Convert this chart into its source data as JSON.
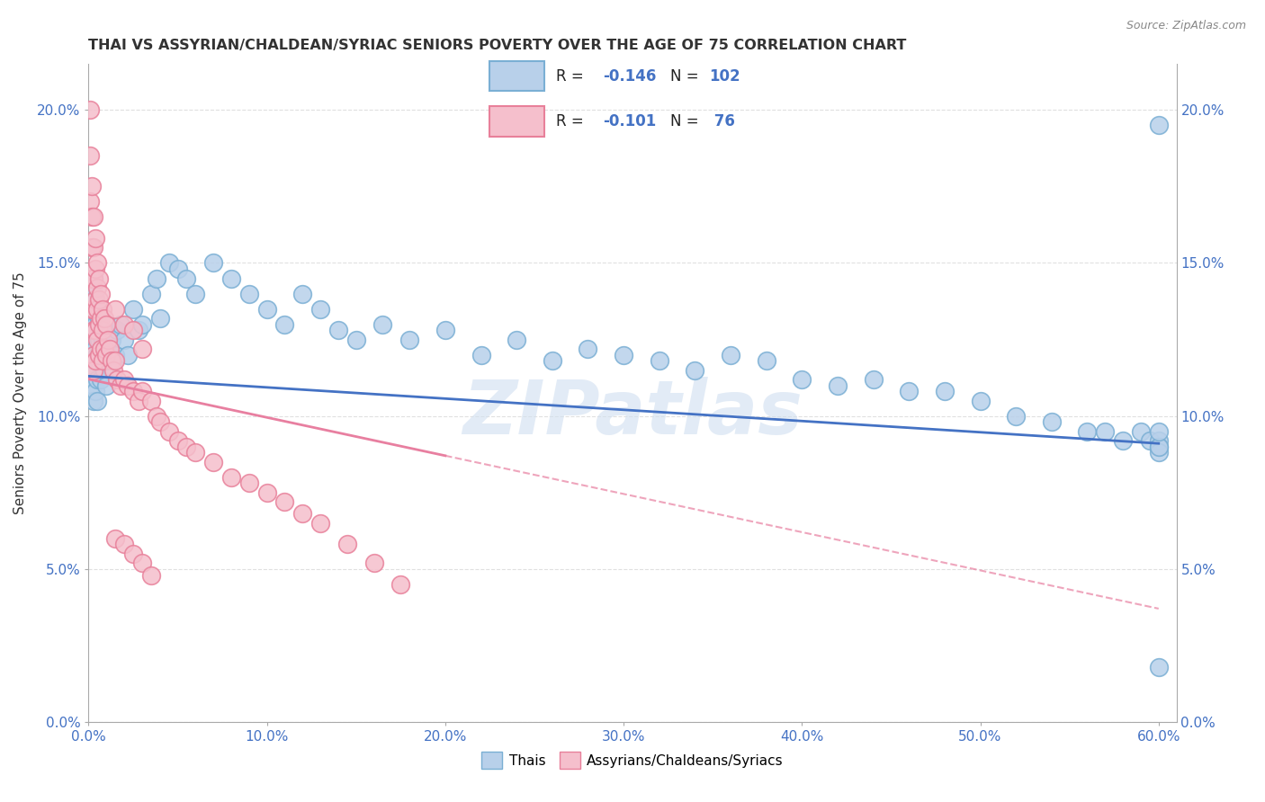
{
  "title": "THAI VS ASSYRIAN/CHALDEAN/SYRIAC SENIORS POVERTY OVER THE AGE OF 75 CORRELATION CHART",
  "source": "Source: ZipAtlas.com",
  "ylabel": "Seniors Poverty Over the Age of 75",
  "xlim": [
    0.0,
    0.61
  ],
  "ylim": [
    0.0,
    0.215
  ],
  "xticks": [
    0.0,
    0.1,
    0.2,
    0.3,
    0.4,
    0.5,
    0.6
  ],
  "xticklabels": [
    "0.0%",
    "10.0%",
    "20.0%",
    "30.0%",
    "40.0%",
    "50.0%",
    "60.0%"
  ],
  "yticks": [
    0.0,
    0.05,
    0.1,
    0.15,
    0.2
  ],
  "yticklabels": [
    "0.0%",
    "5.0%",
    "10.0%",
    "15.0%",
    "20.0%"
  ],
  "thai_color": "#b8d0ea",
  "thai_edge_color": "#7aafd4",
  "assyrian_color": "#f5bfcc",
  "assyrian_edge_color": "#e8809a",
  "trend_thai_color": "#4472c4",
  "trend_assyrian_color": "#e87fa0",
  "legend_label_thai": "Thais",
  "legend_label_assyrian": "Assyrians/Chaldeans/Syriacs",
  "thai_R": -0.146,
  "assyrian_R": -0.101,
  "title_color": "#333333",
  "axis_color": "#4472c4",
  "background_color": "#ffffff",
  "grid_color": "#e0e0e0",
  "watermark_text": "ZIPatlas",
  "watermark_color": "#d0dff0",
  "thai_scatter_x": [
    0.001,
    0.001,
    0.001,
    0.001,
    0.001,
    0.002,
    0.002,
    0.002,
    0.002,
    0.002,
    0.002,
    0.003,
    0.003,
    0.003,
    0.003,
    0.003,
    0.003,
    0.003,
    0.003,
    0.003,
    0.004,
    0.004,
    0.004,
    0.004,
    0.004,
    0.005,
    0.005,
    0.005,
    0.005,
    0.005,
    0.006,
    0.006,
    0.006,
    0.007,
    0.007,
    0.007,
    0.008,
    0.008,
    0.009,
    0.009,
    0.01,
    0.01,
    0.011,
    0.012,
    0.013,
    0.014,
    0.015,
    0.016,
    0.018,
    0.02,
    0.022,
    0.025,
    0.028,
    0.03,
    0.035,
    0.038,
    0.04,
    0.045,
    0.05,
    0.055,
    0.06,
    0.07,
    0.08,
    0.09,
    0.1,
    0.11,
    0.12,
    0.13,
    0.14,
    0.15,
    0.165,
    0.18,
    0.2,
    0.22,
    0.24,
    0.26,
    0.28,
    0.3,
    0.32,
    0.34,
    0.36,
    0.38,
    0.4,
    0.42,
    0.44,
    0.46,
    0.48,
    0.5,
    0.52,
    0.54,
    0.56,
    0.57,
    0.58,
    0.59,
    0.595,
    0.6,
    0.6,
    0.6,
    0.6,
    0.6,
    0.6,
    0.6
  ],
  "thai_scatter_y": [
    0.13,
    0.125,
    0.125,
    0.12,
    0.115,
    0.135,
    0.13,
    0.125,
    0.12,
    0.115,
    0.11,
    0.145,
    0.14,
    0.135,
    0.13,
    0.125,
    0.12,
    0.115,
    0.11,
    0.105,
    0.138,
    0.13,
    0.122,
    0.115,
    0.108,
    0.135,
    0.128,
    0.12,
    0.112,
    0.105,
    0.132,
    0.125,
    0.118,
    0.128,
    0.12,
    0.112,
    0.125,
    0.118,
    0.122,
    0.115,
    0.118,
    0.11,
    0.125,
    0.12,
    0.125,
    0.118,
    0.12,
    0.128,
    0.13,
    0.125,
    0.12,
    0.135,
    0.128,
    0.13,
    0.14,
    0.145,
    0.132,
    0.15,
    0.148,
    0.145,
    0.14,
    0.15,
    0.145,
    0.14,
    0.135,
    0.13,
    0.14,
    0.135,
    0.128,
    0.125,
    0.13,
    0.125,
    0.128,
    0.12,
    0.125,
    0.118,
    0.122,
    0.12,
    0.118,
    0.115,
    0.12,
    0.118,
    0.112,
    0.11,
    0.112,
    0.108,
    0.108,
    0.105,
    0.1,
    0.098,
    0.095,
    0.095,
    0.092,
    0.095,
    0.092,
    0.092,
    0.09,
    0.088,
    0.09,
    0.095,
    0.195,
    0.018
  ],
  "assyrian_scatter_x": [
    0.001,
    0.001,
    0.001,
    0.002,
    0.002,
    0.002,
    0.002,
    0.002,
    0.003,
    0.003,
    0.003,
    0.003,
    0.003,
    0.003,
    0.003,
    0.004,
    0.004,
    0.004,
    0.004,
    0.004,
    0.005,
    0.005,
    0.005,
    0.005,
    0.006,
    0.006,
    0.006,
    0.006,
    0.007,
    0.007,
    0.007,
    0.008,
    0.008,
    0.008,
    0.009,
    0.009,
    0.01,
    0.01,
    0.011,
    0.012,
    0.013,
    0.014,
    0.015,
    0.016,
    0.018,
    0.02,
    0.022,
    0.025,
    0.028,
    0.03,
    0.035,
    0.038,
    0.04,
    0.045,
    0.05,
    0.055,
    0.06,
    0.07,
    0.08,
    0.09,
    0.1,
    0.11,
    0.12,
    0.13,
    0.145,
    0.16,
    0.175,
    0.015,
    0.02,
    0.025,
    0.03,
    0.015,
    0.02,
    0.025,
    0.03,
    0.035
  ],
  "assyrian_scatter_y": [
    0.2,
    0.185,
    0.17,
    0.175,
    0.165,
    0.155,
    0.145,
    0.135,
    0.165,
    0.155,
    0.145,
    0.135,
    0.128,
    0.12,
    0.115,
    0.158,
    0.148,
    0.138,
    0.128,
    0.118,
    0.15,
    0.142,
    0.135,
    0.125,
    0.145,
    0.138,
    0.13,
    0.12,
    0.14,
    0.132,
    0.122,
    0.135,
    0.128,
    0.118,
    0.132,
    0.122,
    0.13,
    0.12,
    0.125,
    0.122,
    0.118,
    0.115,
    0.118,
    0.112,
    0.11,
    0.112,
    0.11,
    0.108,
    0.105,
    0.108,
    0.105,
    0.1,
    0.098,
    0.095,
    0.092,
    0.09,
    0.088,
    0.085,
    0.08,
    0.078,
    0.075,
    0.072,
    0.068,
    0.065,
    0.058,
    0.052,
    0.045,
    0.135,
    0.13,
    0.128,
    0.122,
    0.06,
    0.058,
    0.055,
    0.052,
    0.048
  ],
  "trend_thai_x0": 0.0,
  "trend_thai_y0": 0.113,
  "trend_thai_x1": 0.6,
  "trend_thai_y1": 0.091,
  "trend_ass_solid_x0": 0.0,
  "trend_ass_solid_y0": 0.112,
  "trend_ass_solid_x1": 0.2,
  "trend_ass_solid_y1": 0.087,
  "trend_ass_dash_x0": 0.2,
  "trend_ass_dash_y0": 0.087,
  "trend_ass_dash_x1": 0.6,
  "trend_ass_dash_y1": 0.037
}
